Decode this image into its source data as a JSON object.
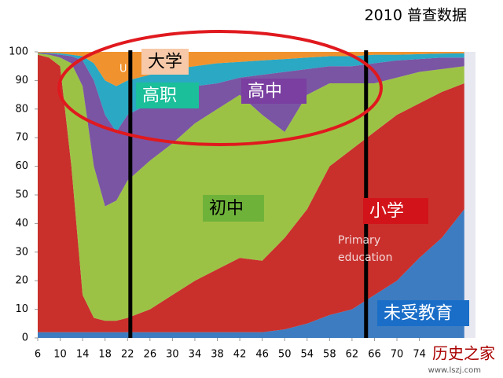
{
  "chart_data": {
    "type": "stacked-area",
    "title": "2010 普查数据",
    "x": [
      6,
      8,
      10,
      12,
      14,
      16,
      18,
      20,
      22,
      26,
      30,
      34,
      38,
      42,
      46,
      50,
      54,
      58,
      62,
      66,
      70,
      74,
      78,
      82
    ],
    "series": [
      {
        "name": "未受教育",
        "color": "#3d7cc0",
        "values": [
          2,
          2,
          2,
          2,
          2,
          2,
          2,
          2,
          2,
          2,
          2,
          2,
          2,
          2,
          2,
          3,
          5,
          8,
          10,
          15,
          20,
          28,
          35,
          45
        ]
      },
      {
        "name": "小学",
        "color": "#c9302c",
        "values": [
          97,
          96,
          93,
          58,
          13,
          5,
          4,
          4,
          5,
          8,
          13,
          18,
          22,
          26,
          25,
          32,
          40,
          52,
          56,
          57,
          58,
          54,
          51,
          44
        ]
      },
      {
        "name": "初中",
        "color": "#9cc245",
        "values": [
          0.5,
          1,
          3,
          36,
          73,
          53,
          40,
          42,
          48,
          52,
          53,
          55,
          56,
          57,
          51,
          37,
          40,
          29,
          23,
          17,
          13,
          11,
          8,
          6
        ]
      },
      {
        "name": "高中",
        "color": "#7a55a3",
        "values": [
          0.2,
          0.5,
          1,
          2.5,
          9,
          30,
          32,
          24,
          23,
          20,
          18,
          13,
          9,
          6,
          14,
          21,
          9,
          6,
          6,
          7,
          6,
          4.5,
          4,
          3
        ]
      },
      {
        "name": "高职",
        "color": "#2aa8c4",
        "values": [
          0.1,
          0.2,
          0.5,
          0.5,
          1.5,
          6,
          12,
          16,
          12,
          10,
          8,
          7,
          7,
          5.5,
          5,
          4.5,
          4,
          3.5,
          3.5,
          3,
          2,
          1.7,
          1.4,
          1.5
        ]
      },
      {
        "name": "大学",
        "color": "#f0932e",
        "values": [
          0.2,
          0.3,
          0.5,
          1,
          1.5,
          4,
          10,
          12,
          10,
          8,
          6,
          5,
          4,
          3.5,
          3,
          2.5,
          2,
          1.5,
          1.5,
          1,
          1,
          0.8,
          0.6,
          0.5
        ]
      }
    ],
    "xlim": [
      6,
      84
    ],
    "xticks": [
      6,
      10,
      14,
      18,
      22,
      26,
      30,
      34,
      38,
      42,
      46,
      50,
      54,
      58,
      62,
      66,
      70,
      74
    ],
    "ylim": [
      0,
      100
    ],
    "yticks": [
      0,
      10,
      20,
      30,
      40,
      50,
      60,
      70,
      80,
      90,
      100
    ],
    "vlines": [
      22.5,
      64.5
    ],
    "annotations": [
      "大学",
      "高职",
      "高中",
      "初中",
      "小学",
      "Primary",
      "education",
      "未受教育",
      "U"
    ],
    "watermark": [
      "历史之家",
      "www.lszj.com"
    ]
  }
}
